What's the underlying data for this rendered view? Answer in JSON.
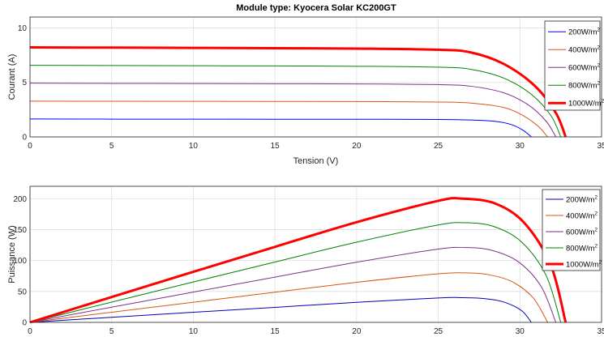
{
  "chart_data": [
    {
      "type": "line",
      "title": "Module type: Kyocera Solar KC200GT",
      "xlabel": "Tension (V)",
      "ylabel": "Courant (A)",
      "xlim": [
        0,
        35
      ],
      "ylim": [
        0,
        11
      ],
      "xticks": [
        "0",
        "5",
        "10",
        "15",
        "20",
        "25",
        "30",
        "35"
      ],
      "yticks": [
        "0",
        "5",
        "10"
      ],
      "grid": true,
      "legend_position": "top-right",
      "series": [
        {
          "name": "200W/m",
          "sup": "2",
          "color": "#0000ff",
          "width": 1,
          "x": [
            0,
            5,
            10,
            15,
            20,
            25,
            27,
            28.5,
            29.5,
            30.2,
            30.7
          ],
          "y": [
            1.64,
            1.63,
            1.63,
            1.62,
            1.62,
            1.6,
            1.55,
            1.42,
            1.12,
            0.6,
            0.0
          ]
        },
        {
          "name": "400W/m",
          "sup": "2",
          "color": "#d95319",
          "width": 1,
          "x": [
            0,
            5,
            10,
            15,
            20,
            25,
            27,
            29,
            30.2,
            31.1,
            31.7
          ],
          "y": [
            3.28,
            3.27,
            3.26,
            3.25,
            3.24,
            3.2,
            3.1,
            2.7,
            1.95,
            1.0,
            0.0
          ]
        },
        {
          "name": "600W/m",
          "sup": "2",
          "color": "#7e2f8e",
          "width": 1,
          "x": [
            0,
            5,
            10,
            15,
            20,
            25,
            27,
            29,
            30.5,
            31.6,
            32.2
          ],
          "y": [
            4.93,
            4.91,
            4.9,
            4.88,
            4.86,
            4.8,
            4.65,
            4.05,
            2.95,
            1.45,
            0.0
          ]
        },
        {
          "name": "800W/m",
          "sup": "2",
          "color": "#008000",
          "width": 1,
          "x": [
            0,
            5,
            10,
            15,
            20,
            25,
            27,
            29,
            30.7,
            31.9,
            32.5
          ],
          "y": [
            6.57,
            6.55,
            6.53,
            6.51,
            6.48,
            6.4,
            6.2,
            5.4,
            3.9,
            1.95,
            0.0
          ]
        },
        {
          "name": "1000W/m",
          "sup": "2",
          "color": "#ff0000",
          "width": 3,
          "x": [
            0,
            5,
            10,
            15,
            20,
            25,
            27,
            29,
            30.9,
            32.2,
            32.8
          ],
          "y": [
            8.21,
            8.19,
            8.17,
            8.14,
            8.1,
            8.0,
            7.75,
            6.7,
            4.7,
            2.2,
            0.0
          ]
        }
      ]
    },
    {
      "type": "line",
      "title": "",
      "xlabel": "",
      "ylabel": "Puissance (W)",
      "xlim": [
        0,
        35
      ],
      "ylim": [
        0,
        220
      ],
      "xticks": [
        "0",
        "5",
        "10",
        "15",
        "20",
        "25",
        "30",
        "35"
      ],
      "yticks": [
        "0",
        "50",
        "100",
        "150",
        "200"
      ],
      "grid": true,
      "legend_position": "top-right",
      "series": [
        {
          "name": "200W/m",
          "sup": "2",
          "color": "#0000b4",
          "width": 1,
          "x": [
            0,
            5,
            10,
            15,
            20,
            25,
            26.5,
            27.8,
            29,
            30.1,
            30.7
          ],
          "y": [
            0,
            8.2,
            16.3,
            24.3,
            32.4,
            39.5,
            40.0,
            38.5,
            33.0,
            19.0,
            0
          ]
        },
        {
          "name": "400W/m",
          "sup": "2",
          "color": "#d95319",
          "width": 1,
          "x": [
            0,
            5,
            10,
            15,
            20,
            25,
            26.6,
            28,
            29.5,
            30.8,
            31.7
          ],
          "y": [
            0,
            16.4,
            32.6,
            48.8,
            64.8,
            78.5,
            80.0,
            77.5,
            66.0,
            40.0,
            0
          ]
        },
        {
          "name": "600W/m",
          "sup": "2",
          "color": "#7e2f8e",
          "width": 1,
          "x": [
            0,
            5,
            10,
            15,
            20,
            25,
            26.6,
            28.2,
            29.9,
            31.3,
            32.2
          ],
          "y": [
            0,
            24.6,
            49.0,
            73.2,
            97.2,
            118.5,
            121.0,
            117.0,
            98.0,
            58.0,
            0
          ]
        },
        {
          "name": "800W/m",
          "sup": "2",
          "color": "#008000",
          "width": 1,
          "x": [
            0,
            5,
            10,
            15,
            20,
            25,
            26.7,
            28.4,
            30.1,
            31.6,
            32.5
          ],
          "y": [
            0,
            32.8,
            65.3,
            97.6,
            129.6,
            157.5,
            161.0,
            155.0,
            130.0,
            76.0,
            0
          ]
        },
        {
          "name": "1000W/m",
          "sup": "2",
          "color": "#ff0000",
          "width": 3,
          "x": [
            0,
            5,
            10,
            15,
            20,
            25,
            26.5,
            28.5,
            30.3,
            31.9,
            32.8
          ],
          "y": [
            0,
            41.0,
            81.7,
            122.1,
            162.0,
            196.5,
            200.0,
            192.0,
            160.0,
            92.0,
            0
          ]
        }
      ]
    }
  ]
}
